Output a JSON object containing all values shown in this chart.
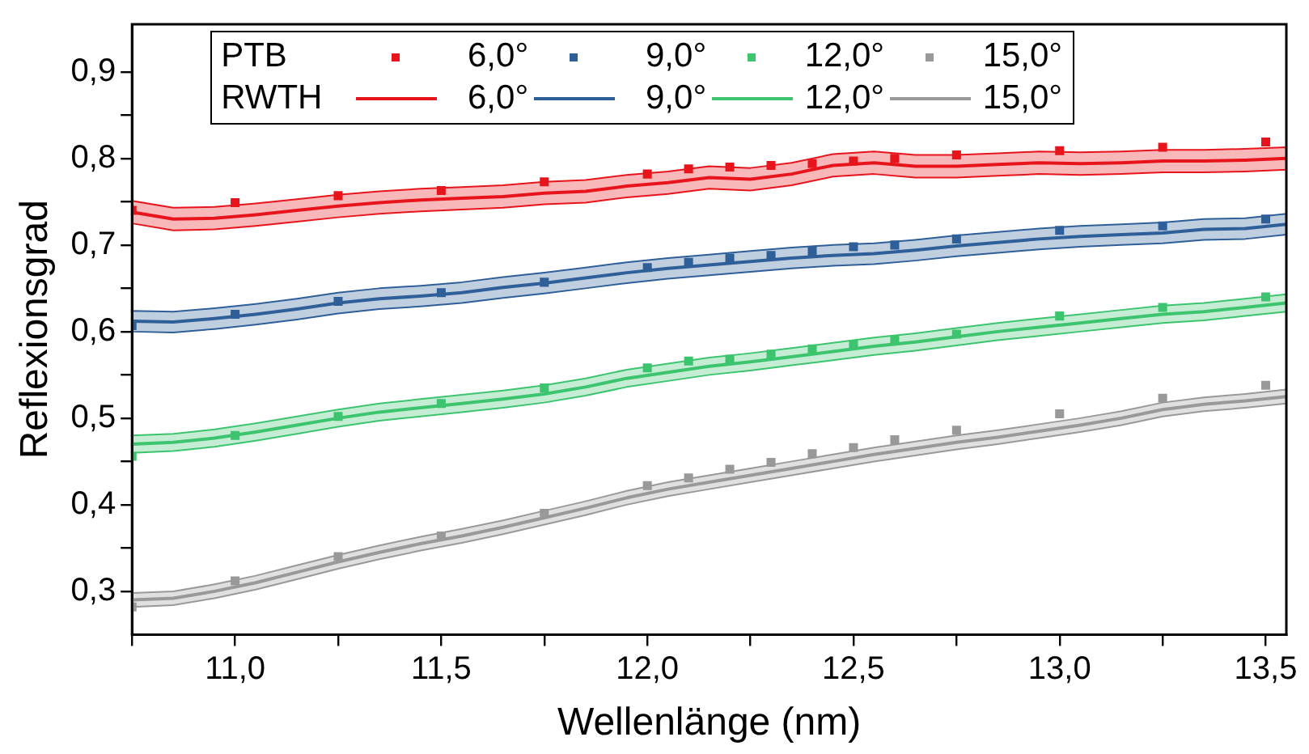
{
  "chart_data": {
    "type": "line",
    "xlabel": "Wellenlänge (nm)",
    "ylabel": "Reflexionsgrad",
    "xlim": [
      10.75,
      13.55
    ],
    "ylim": [
      0.25,
      0.955
    ],
    "xticks": [
      {
        "value": 10.75,
        "label": null
      },
      {
        "value": 11,
        "label": "11,0"
      },
      {
        "value": 11.25,
        "label": null
      },
      {
        "value": 11.5,
        "label": "11,5"
      },
      {
        "value": 11.75,
        "label": null
      },
      {
        "value": 12,
        "label": "12,0"
      },
      {
        "value": 12.25,
        "label": null
      },
      {
        "value": 12.5,
        "label": "12,5"
      },
      {
        "value": 12.75,
        "label": null
      },
      {
        "value": 13,
        "label": "13,0"
      },
      {
        "value": 13.25,
        "label": null
      },
      {
        "value": 13.5,
        "label": "13,5"
      }
    ],
    "yticks": [
      {
        "value": 0.3,
        "label": "0,3"
      },
      {
        "value": 0.35,
        "label": null
      },
      {
        "value": 0.4,
        "label": "0,4"
      },
      {
        "value": 0.45,
        "label": null
      },
      {
        "value": 0.5,
        "label": "0,5"
      },
      {
        "value": 0.55,
        "label": null
      },
      {
        "value": 0.6,
        "label": "0,6"
      },
      {
        "value": 0.65,
        "label": null
      },
      {
        "value": 0.7,
        "label": "0,7"
      },
      {
        "value": 0.75,
        "label": null
      },
      {
        "value": 0.8,
        "label": "0,8"
      },
      {
        "value": 0.85,
        "label": null
      },
      {
        "value": 0.9,
        "label": "0,9"
      }
    ],
    "grid": false,
    "legend": "top",
    "line_style": "solid",
    "annotations": [
      "PTB",
      "RWTH"
    ],
    "series": [
      {
        "name": "6,0°",
        "type": "scatter",
        "marker": "square",
        "color": "#e8141c",
        "x": [
          10.75,
          11,
          11.25,
          11.5,
          11.75,
          12,
          12.1,
          12.2,
          12.3,
          12.4,
          12.5,
          12.6,
          12.75,
          13,
          13.25,
          13.5
        ],
        "values": [
          0.74,
          0.749,
          0.757,
          0.763,
          0.773,
          0.782,
          0.788,
          0.79,
          0.792,
          0.794,
          0.797,
          0.8,
          0.804,
          0.809,
          0.813,
          0.819
        ]
      },
      {
        "name": "9,0°",
        "type": "scatter",
        "marker": "square",
        "color": "#2f5f98",
        "x": [
          10.75,
          11,
          11.25,
          11.5,
          11.75,
          12,
          12.1,
          12.2,
          12.3,
          12.4,
          12.5,
          12.6,
          12.75,
          13,
          13.25,
          13.5
        ],
        "values": [
          0.607,
          0.62,
          0.635,
          0.645,
          0.657,
          0.674,
          0.68,
          0.685,
          0.688,
          0.693,
          0.698,
          0.7,
          0.707,
          0.717,
          0.722,
          0.73
        ]
      },
      {
        "name": "12,0°",
        "type": "scatter",
        "marker": "square",
        "color": "#3cc46e",
        "x": [
          10.75,
          11,
          11.25,
          11.5,
          11.75,
          12,
          12.1,
          12.2,
          12.3,
          12.4,
          12.5,
          12.6,
          12.75,
          13,
          13.25,
          13.5
        ],
        "values": [
          0.456,
          0.48,
          0.502,
          0.517,
          0.535,
          0.558,
          0.566,
          0.568,
          0.574,
          0.58,
          0.585,
          0.59,
          0.597,
          0.618,
          0.628,
          0.64
        ]
      },
      {
        "name": "15,0°",
        "type": "scatter",
        "marker": "square",
        "color": "#999999",
        "x": [
          10.75,
          11,
          11.25,
          11.5,
          11.75,
          12,
          12.1,
          12.2,
          12.3,
          12.4,
          12.5,
          12.6,
          12.75,
          13,
          13.25,
          13.5
        ],
        "values": [
          0.282,
          0.312,
          0.34,
          0.364,
          0.39,
          0.422,
          0.431,
          0.441,
          0.449,
          0.459,
          0.466,
          0.475,
          0.486,
          0.505,
          0.523,
          0.538
        ]
      },
      {
        "name": "6,0°",
        "marker": "none",
        "color": "#e8141c",
        "x": [
          10.75,
          10.85,
          10.95,
          11.05,
          11.15,
          11.25,
          11.35,
          11.45,
          11.55,
          11.65,
          11.75,
          11.85,
          11.95,
          12.05,
          12.15,
          12.25,
          12.35,
          12.45,
          12.55,
          12.65,
          12.75,
          12.85,
          12.95,
          13.05,
          13.15,
          13.25,
          13.35,
          13.45,
          13.55
        ],
        "values": [
          0.738,
          0.73,
          0.731,
          0.735,
          0.74,
          0.745,
          0.749,
          0.752,
          0.754,
          0.756,
          0.76,
          0.762,
          0.768,
          0.772,
          0.778,
          0.776,
          0.782,
          0.792,
          0.795,
          0.791,
          0.791,
          0.793,
          0.795,
          0.794,
          0.795,
          0.797,
          0.797,
          0.798,
          0.8
        ],
        "lower": [
          0.725,
          0.717,
          0.718,
          0.722,
          0.727,
          0.732,
          0.736,
          0.739,
          0.741,
          0.743,
          0.747,
          0.749,
          0.755,
          0.759,
          0.765,
          0.763,
          0.769,
          0.779,
          0.782,
          0.778,
          0.778,
          0.78,
          0.782,
          0.781,
          0.782,
          0.784,
          0.784,
          0.785,
          0.787
        ],
        "upper": [
          0.751,
          0.743,
          0.744,
          0.748,
          0.753,
          0.758,
          0.762,
          0.765,
          0.767,
          0.769,
          0.773,
          0.775,
          0.781,
          0.785,
          0.791,
          0.789,
          0.795,
          0.805,
          0.808,
          0.804,
          0.804,
          0.806,
          0.808,
          0.807,
          0.808,
          0.81,
          0.81,
          0.811,
          0.813
        ]
      },
      {
        "name": "9,0°",
        "marker": "none",
        "color": "#2f5f98",
        "x": [
          10.75,
          10.85,
          10.95,
          11.05,
          11.15,
          11.25,
          11.35,
          11.45,
          11.55,
          11.65,
          11.75,
          11.85,
          11.95,
          12.05,
          12.15,
          12.25,
          12.35,
          12.45,
          12.55,
          12.65,
          12.75,
          12.85,
          12.95,
          13.05,
          13.15,
          13.25,
          13.35,
          13.45,
          13.55
        ],
        "values": [
          0.612,
          0.611,
          0.615,
          0.62,
          0.626,
          0.633,
          0.638,
          0.641,
          0.645,
          0.651,
          0.656,
          0.662,
          0.668,
          0.673,
          0.677,
          0.681,
          0.685,
          0.688,
          0.69,
          0.694,
          0.699,
          0.703,
          0.707,
          0.71,
          0.712,
          0.714,
          0.718,
          0.719,
          0.724
        ],
        "lower": [
          0.6,
          0.599,
          0.603,
          0.608,
          0.614,
          0.621,
          0.626,
          0.629,
          0.633,
          0.639,
          0.644,
          0.65,
          0.656,
          0.661,
          0.665,
          0.669,
          0.673,
          0.676,
          0.678,
          0.682,
          0.687,
          0.691,
          0.695,
          0.698,
          0.7,
          0.702,
          0.706,
          0.707,
          0.712
        ],
        "upper": [
          0.624,
          0.623,
          0.627,
          0.632,
          0.638,
          0.645,
          0.65,
          0.653,
          0.657,
          0.663,
          0.668,
          0.674,
          0.68,
          0.685,
          0.689,
          0.693,
          0.697,
          0.7,
          0.702,
          0.706,
          0.711,
          0.715,
          0.719,
          0.722,
          0.724,
          0.726,
          0.73,
          0.731,
          0.736
        ]
      },
      {
        "name": "12,0°",
        "marker": "none",
        "color": "#3cc46e",
        "x": [
          10.75,
          10.85,
          10.95,
          11.05,
          11.15,
          11.25,
          11.35,
          11.45,
          11.55,
          11.65,
          11.75,
          11.85,
          11.95,
          12.05,
          12.15,
          12.25,
          12.35,
          12.45,
          12.55,
          12.65,
          12.75,
          12.85,
          12.95,
          13.05,
          13.15,
          13.25,
          13.35,
          13.45,
          13.55
        ],
        "values": [
          0.47,
          0.472,
          0.477,
          0.484,
          0.492,
          0.5,
          0.507,
          0.512,
          0.517,
          0.522,
          0.528,
          0.536,
          0.546,
          0.553,
          0.56,
          0.565,
          0.571,
          0.577,
          0.583,
          0.588,
          0.594,
          0.6,
          0.605,
          0.61,
          0.615,
          0.62,
          0.623,
          0.628,
          0.633
        ],
        "lower": [
          0.46,
          0.462,
          0.467,
          0.474,
          0.482,
          0.49,
          0.497,
          0.502,
          0.507,
          0.512,
          0.518,
          0.526,
          0.536,
          0.543,
          0.55,
          0.555,
          0.561,
          0.567,
          0.573,
          0.578,
          0.584,
          0.59,
          0.595,
          0.6,
          0.605,
          0.61,
          0.613,
          0.618,
          0.623
        ],
        "upper": [
          0.48,
          0.482,
          0.487,
          0.494,
          0.502,
          0.51,
          0.517,
          0.522,
          0.527,
          0.532,
          0.538,
          0.546,
          0.556,
          0.563,
          0.57,
          0.575,
          0.581,
          0.587,
          0.593,
          0.598,
          0.604,
          0.61,
          0.615,
          0.62,
          0.625,
          0.63,
          0.633,
          0.638,
          0.643
        ]
      },
      {
        "name": "15,0°",
        "marker": "none",
        "color": "#999999",
        "x": [
          10.75,
          10.85,
          10.95,
          11.05,
          11.15,
          11.25,
          11.35,
          11.45,
          11.55,
          11.65,
          11.75,
          11.85,
          11.95,
          12.05,
          12.15,
          12.25,
          12.35,
          12.45,
          12.55,
          12.65,
          12.75,
          12.85,
          12.95,
          13.05,
          13.15,
          13.25,
          13.35,
          13.45,
          13.55
        ],
        "values": [
          0.29,
          0.292,
          0.3,
          0.31,
          0.322,
          0.334,
          0.345,
          0.355,
          0.364,
          0.374,
          0.385,
          0.396,
          0.408,
          0.418,
          0.426,
          0.434,
          0.442,
          0.45,
          0.458,
          0.465,
          0.472,
          0.478,
          0.485,
          0.492,
          0.5,
          0.51,
          0.516,
          0.52,
          0.525
        ],
        "lower": [
          0.282,
          0.284,
          0.292,
          0.302,
          0.314,
          0.326,
          0.337,
          0.347,
          0.356,
          0.366,
          0.377,
          0.388,
          0.4,
          0.41,
          0.418,
          0.426,
          0.434,
          0.442,
          0.45,
          0.457,
          0.464,
          0.47,
          0.477,
          0.484,
          0.492,
          0.502,
          0.508,
          0.512,
          0.517
        ],
        "upper": [
          0.298,
          0.3,
          0.308,
          0.318,
          0.33,
          0.342,
          0.353,
          0.363,
          0.372,
          0.382,
          0.393,
          0.404,
          0.416,
          0.426,
          0.434,
          0.442,
          0.45,
          0.458,
          0.466,
          0.473,
          0.48,
          0.486,
          0.493,
          0.5,
          0.508,
          0.518,
          0.524,
          0.528,
          0.533
        ]
      }
    ]
  }
}
